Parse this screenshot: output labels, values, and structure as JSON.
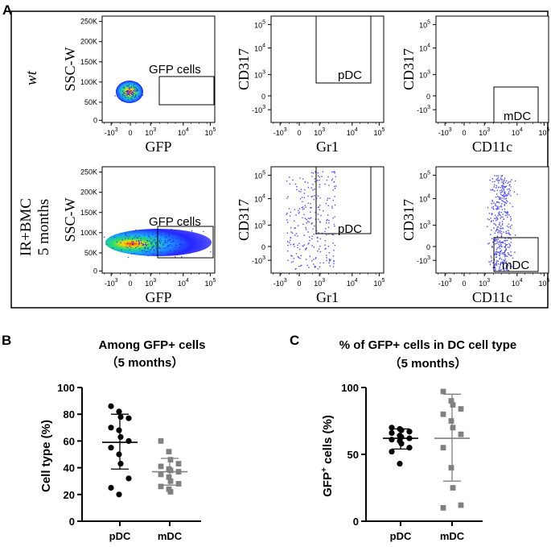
{
  "panel_a": {
    "letter": "A",
    "row_labels": [
      {
        "lines": [
          "wt"
        ],
        "italic": true
      },
      {
        "lines": [
          "IR+BMC",
          "5 months"
        ],
        "italic": false
      }
    ],
    "ssc_ticks": [
      "250K",
      "200K",
      "150K",
      "100K",
      "50K",
      "0"
    ],
    "fluor_ticks": [
      "-10",
      "0",
      "10",
      "10",
      "10"
    ],
    "fluor_exponents": [
      "3",
      "",
      "3",
      "4",
      "5"
    ],
    "cd317_ticks": [
      "10",
      "10",
      "10",
      "0",
      "-10"
    ],
    "cd317_exponents": [
      "5",
      "4",
      "3",
      "",
      "3"
    ],
    "plots": [
      {
        "row": 0,
        "col": 0,
        "xlabel": "GFP",
        "ylabel": "SSC-W",
        "gate": "GFP cells"
      },
      {
        "row": 0,
        "col": 1,
        "xlabel": "Gr1",
        "ylabel": "CD317",
        "gate": "pDC"
      },
      {
        "row": 0,
        "col": 2,
        "xlabel": "CD11c",
        "ylabel": "CD317",
        "gate": "mDC"
      },
      {
        "row": 1,
        "col": 0,
        "xlabel": "GFP",
        "ylabel": "SSC-W",
        "gate": "GFP cells"
      },
      {
        "row": 1,
        "col": 1,
        "xlabel": "Gr1",
        "ylabel": "CD317",
        "gate": "pDC"
      },
      {
        "row": 1,
        "col": 2,
        "xlabel": "CD11c",
        "ylabel": "CD317",
        "gate": "mDC"
      }
    ]
  },
  "chart_data": [
    {
      "id": "B",
      "letter": "B",
      "type": "scatter",
      "title": "Among GFP+ cells",
      "subtitle": "（5 months）",
      "xlabel": "",
      "ylabel": "Cell type (%)",
      "categories": [
        "pDC",
        "mDC"
      ],
      "ylim": [
        0,
        100
      ],
      "yticks": [
        "0",
        "20",
        "40",
        "60",
        "80",
        "100"
      ],
      "series": [
        {
          "name": "pDC",
          "marker": "circle",
          "color": "#000000",
          "values": [
            86,
            82,
            78,
            77,
            70,
            68,
            63,
            60,
            55,
            50,
            43,
            32,
            25,
            20
          ],
          "mean": 59,
          "sd_low": 39,
          "sd_high": 80
        },
        {
          "name": "mDC",
          "marker": "square",
          "color": "#808080",
          "values": [
            60,
            52,
            46,
            43,
            41,
            39,
            38,
            37,
            35,
            33,
            30,
            28,
            26,
            24,
            22
          ],
          "mean": 37,
          "sd_low": 27,
          "sd_high": 47
        }
      ]
    },
    {
      "id": "C",
      "letter": "C",
      "type": "scatter",
      "title": "% of GFP+ cells in DC cell type",
      "subtitle": "（5 months）",
      "xlabel": "",
      "ylabel_main": "GFP",
      "ylabel_sup": "+",
      "ylabel_rest": " cells (%)",
      "categories": [
        "pDC",
        "mDC"
      ],
      "ylim": [
        0,
        100
      ],
      "yticks": [
        "0",
        "50",
        "100"
      ],
      "series": [
        {
          "name": "pDC",
          "marker": "circle",
          "color": "#000000",
          "values": [
            70,
            69,
            68,
            67,
            66,
            64,
            63,
            62,
            61,
            60,
            58,
            55,
            52,
            43
          ],
          "mean": 62,
          "sd_low": 54,
          "sd_high": 69
        },
        {
          "name": "mDC",
          "marker": "square",
          "color": "#808080",
          "values": [
            97,
            90,
            87,
            84,
            80,
            75,
            70,
            65,
            55,
            40,
            25,
            12,
            10
          ],
          "mean": 62,
          "sd_low": 30,
          "sd_high": 95
        }
      ]
    }
  ]
}
